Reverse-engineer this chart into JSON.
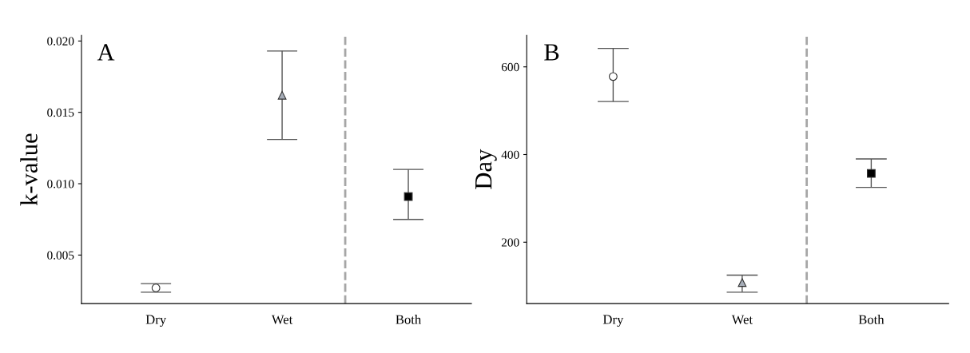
{
  "chart_data": [
    {
      "type": "scatter",
      "title": "A",
      "ylabel": "k-value",
      "categories": [
        "Dry",
        "Wet",
        "Both"
      ],
      "series": [
        {
          "color": "#ffffff",
          "marker": "circle",
          "values": [
            0.0027,
            null,
            null
          ],
          "errors": [
            [
              0.0024,
              0.003
            ],
            null,
            null
          ]
        },
        {
          "color": "#a6adb8",
          "marker": "triangle",
          "values": [
            null,
            0.0162,
            null
          ],
          "errors": [
            null,
            [
              0.0131,
              0.0193
            ],
            null
          ]
        },
        {
          "color": "#000000",
          "marker": "square",
          "values": [
            null,
            null,
            0.0091
          ],
          "errors": [
            null,
            null,
            [
              0.0075,
              0.011
            ]
          ]
        }
      ],
      "ylim": [
        0.0016,
        0.0204
      ],
      "yticks": [
        0.005,
        {
          "value": 0.01,
          "label": "0.010"
        },
        0.015,
        {
          "value": 0.02,
          "label": "0.020"
        }
      ],
      "grid": false,
      "legend": false
    },
    {
      "type": "scatter",
      "title": "B",
      "ylabel": "Day",
      "categories": [
        "Dry",
        "Wet",
        "Both"
      ],
      "series": [
        {
          "color": "#ffffff",
          "marker": "circle",
          "values": [
            578,
            null,
            null
          ],
          "errors": [
            [
              521,
              642
            ],
            null,
            null
          ]
        },
        {
          "color": "#a6adb8",
          "marker": "triangle",
          "values": [
            null,
            108,
            null
          ],
          "errors": [
            null,
            [
              86,
              125
            ],
            null
          ]
        },
        {
          "color": "#000000",
          "marker": "square",
          "values": [
            null,
            null,
            357
          ],
          "errors": [
            null,
            null,
            [
              325,
              390
            ]
          ]
        }
      ],
      "ylim": [
        60,
        672
      ],
      "yticks": [
        200,
        400,
        600
      ],
      "grid": false,
      "legend": false
    }
  ]
}
